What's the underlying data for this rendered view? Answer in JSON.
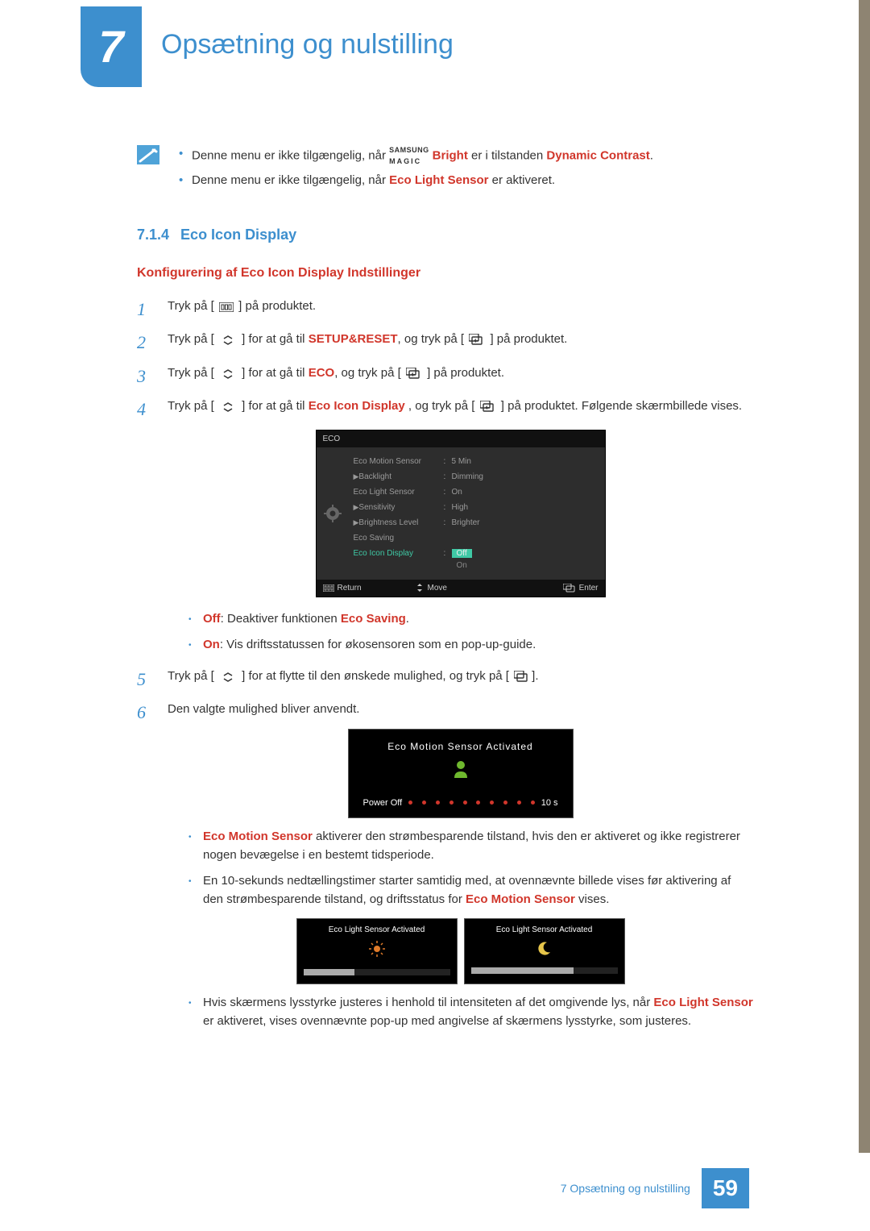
{
  "chapter": {
    "number": "7",
    "title": "Opsætning og nulstilling"
  },
  "logo": {
    "top": "SAMSUNG",
    "bottom": "MAGIC"
  },
  "notes": [
    {
      "prefix": "Denne menu er ikke tilgængelig, når ",
      "kw1": "Bright",
      "mid": " er i tilstanden ",
      "kw2": "Dynamic Contrast",
      "suffix": "."
    },
    {
      "prefix": "Denne menu er ikke tilgængelig, når ",
      "kw1": "Eco Light Sensor",
      "suffix": " er aktiveret."
    }
  ],
  "section": {
    "number": "7.1.4",
    "title": "Eco Icon Display"
  },
  "subsection": {
    "title": "Konfigurering af Eco Icon Display Indstillinger"
  },
  "steps": [
    {
      "a": "Tryk på [",
      "b": "] på produktet."
    },
    {
      "a": "Tryk på [",
      "b": "] for at gå til ",
      "kw": "SETUP&RESET",
      "c": ", og tryk på [",
      "d": "] på produktet."
    },
    {
      "a": "Tryk på [",
      "b": "] for at gå til ",
      "kw": "ECO",
      "c": ", og tryk på [",
      "d": "] på produktet."
    },
    {
      "a": "Tryk på [",
      "b": "] for at gå til ",
      "kw": "Eco Icon Display",
      "c": " , og tryk på [",
      "d": "] på produktet. Følgende skærmbillede vises."
    },
    {
      "a": "Tryk på [",
      "b": "] for at flytte til den ønskede mulighed, og tryk på [",
      "c": "]."
    },
    {
      "a": "Den valgte mulighed bliver anvendt."
    }
  ],
  "osd": {
    "title": "ECO",
    "rows": [
      {
        "label": "Eco Motion Sensor",
        "value": "5 Min"
      },
      {
        "label": "Backlight",
        "value": "Dimming"
      },
      {
        "label": "Eco Light Sensor",
        "value": "On"
      },
      {
        "label": "Sensitivity",
        "value": "High"
      },
      {
        "label": "Brightness Level",
        "value": "Brighter"
      },
      {
        "label": "Eco Saving",
        "value": ""
      },
      {
        "label": "Eco Icon Display",
        "options": [
          "Off",
          "On"
        ]
      }
    ],
    "footer": {
      "return": "Return",
      "move": "Move",
      "enter": "Enter"
    },
    "colors": {
      "bg": "#2d2d2d",
      "header_bg": "#111111",
      "text": "#9a9a9a",
      "highlight": "#3fc9a5"
    }
  },
  "options": [
    {
      "kw": "Off",
      "a": ": Deaktiver funktionen ",
      "kw2": "Eco Saving",
      "b": "."
    },
    {
      "kw": "On",
      "a": ": Vis driftsstatussen for økosensoren som en pop-up-guide."
    }
  ],
  "popup_motion": {
    "title": "Eco Motion Sensor Activated",
    "left": "Power Off",
    "right": "10 s",
    "dot_count": 10,
    "dot_color": "#d1362b",
    "icon_color": "#6fb82e",
    "bg": "#000000"
  },
  "popup_light": {
    "title": "Eco Light Sensor Activated",
    "day_fill_pct": 35,
    "night_fill_pct": 70,
    "sun_color": "#e07b2a",
    "moon_color": "#e6c54a",
    "bg": "#000000"
  },
  "bullets": [
    {
      "kw": "Eco Motion Sensor",
      "text": "aktiverer den strømbesparende tilstand, hvis den er aktiveret og ikke registrerer nogen bevægelse i en bestemt tidsperiode."
    },
    {
      "a": "En 10-sekunds nedtællingstimer starter samtidig med, at ovennævnte billede vises før aktivering af den strømbesparende tilstand, og driftsstatus for",
      "kw": "Eco Motion Sensor",
      "b": "vises."
    },
    {
      "a": "Hvis skærmens lysstyrke justeres i henhold til intensiteten af det omgivende lys, når",
      "kw": "Eco Light Sensor",
      "b": "er aktiveret, vises ovennævnte pop-up med angivelse af skærmens lysstyrke, som justeres."
    }
  ],
  "footer": {
    "label": "7 Opsætning og nulstilling",
    "page": "59"
  },
  "palette": {
    "accent_blue": "#3d8fce",
    "accent_red": "#d1362b",
    "side_strip": "#8e8472"
  }
}
